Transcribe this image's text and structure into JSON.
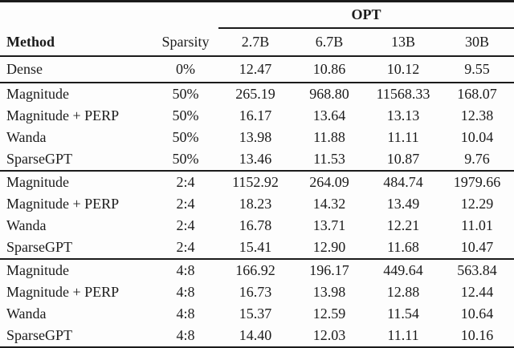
{
  "table": {
    "group_header": {
      "label": "OPT"
    },
    "columns": [
      "Method",
      "Sparsity",
      "2.7B",
      "6.7B",
      "13B",
      "30B"
    ],
    "sections": [
      {
        "name": "dense",
        "rows": [
          [
            "Dense",
            "0%",
            "12.47",
            "10.86",
            "10.12",
            "9.55"
          ]
        ]
      },
      {
        "name": "unstructured-50",
        "rows": [
          [
            "Magnitude",
            "50%",
            "265.19",
            "968.80",
            "11568.33",
            "168.07"
          ],
          [
            "Magnitude + PERP",
            "50%",
            "16.17",
            "13.64",
            "13.13",
            "12.38"
          ],
          [
            "Wanda",
            "50%",
            "13.98",
            "11.88",
            "11.11",
            "10.04"
          ],
          [
            "SparseGPT",
            "50%",
            "13.46",
            "11.53",
            "10.87",
            "9.76"
          ]
        ]
      },
      {
        "name": "structured-2-4",
        "rows": [
          [
            "Magnitude",
            "2:4",
            "1152.92",
            "264.09",
            "484.74",
            "1979.66"
          ],
          [
            "Magnitude + PERP",
            "2:4",
            "18.23",
            "14.32",
            "13.49",
            "12.29"
          ],
          [
            "Wanda",
            "2:4",
            "16.78",
            "13.71",
            "12.21",
            "11.01"
          ],
          [
            "SparseGPT",
            "2:4",
            "15.41",
            "12.90",
            "11.68",
            "10.47"
          ]
        ]
      },
      {
        "name": "structured-4-8",
        "rows": [
          [
            "Magnitude",
            "4:8",
            "166.92",
            "196.17",
            "449.64",
            "563.84"
          ],
          [
            "Magnitude + PERP",
            "4:8",
            "16.73",
            "13.98",
            "12.88",
            "12.44"
          ],
          [
            "Wanda",
            "4:8",
            "15.37",
            "12.59",
            "11.54",
            "10.64"
          ],
          [
            "SparseGPT",
            "4:8",
            "14.40",
            "12.03",
            "11.11",
            "10.16"
          ]
        ]
      }
    ]
  }
}
